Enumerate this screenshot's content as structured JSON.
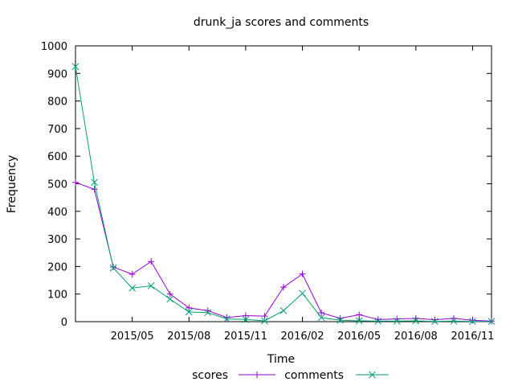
{
  "chart_data": {
    "type": "line",
    "title": "drunk_ja scores and comments",
    "xlabel": "Time",
    "ylabel": "Frequency",
    "ylim": [
      0,
      1000
    ],
    "yticks": [
      0,
      100,
      200,
      300,
      400,
      500,
      600,
      700,
      800,
      900,
      1000
    ],
    "x": [
      "2015-02",
      "2015-03",
      "2015-04",
      "2015-05",
      "2015-06",
      "2015-07",
      "2015-08",
      "2015-09",
      "2015-10",
      "2015-11",
      "2015-12",
      "2016-01",
      "2016-02",
      "2016-03",
      "2016-04",
      "2016-05",
      "2016-06",
      "2016-07",
      "2016-08",
      "2016-09",
      "2016-10",
      "2016-11",
      "2016-12"
    ],
    "xlim": [
      "2015-02",
      "2016-12"
    ],
    "xticks": [
      {
        "label": "2015/05",
        "date": "2015-05"
      },
      {
        "label": "2015/08",
        "date": "2015-08"
      },
      {
        "label": "2015/11",
        "date": "2015-11"
      },
      {
        "label": "2016/02",
        "date": "2016-02"
      },
      {
        "label": "2016/05",
        "date": "2016-05"
      },
      {
        "label": "2016/08",
        "date": "2016-08"
      },
      {
        "label": "2016/11",
        "date": "2016-11"
      }
    ],
    "series": [
      {
        "name": "scores",
        "color": "#9400d3",
        "marker": "plus",
        "values": [
          505,
          480,
          198,
          172,
          218,
          100,
          50,
          40,
          15,
          22,
          20,
          125,
          173,
          32,
          12,
          25,
          8,
          10,
          12,
          7,
          12,
          5,
          2
        ]
      },
      {
        "name": "comments",
        "color": "#009e73",
        "marker": "cross",
        "values": [
          925,
          505,
          195,
          122,
          130,
          82,
          35,
          33,
          10,
          8,
          3,
          40,
          103,
          15,
          5,
          3,
          2,
          2,
          3,
          1,
          2,
          1,
          1
        ]
      }
    ],
    "grid": false,
    "legend_position": "bottom"
  }
}
